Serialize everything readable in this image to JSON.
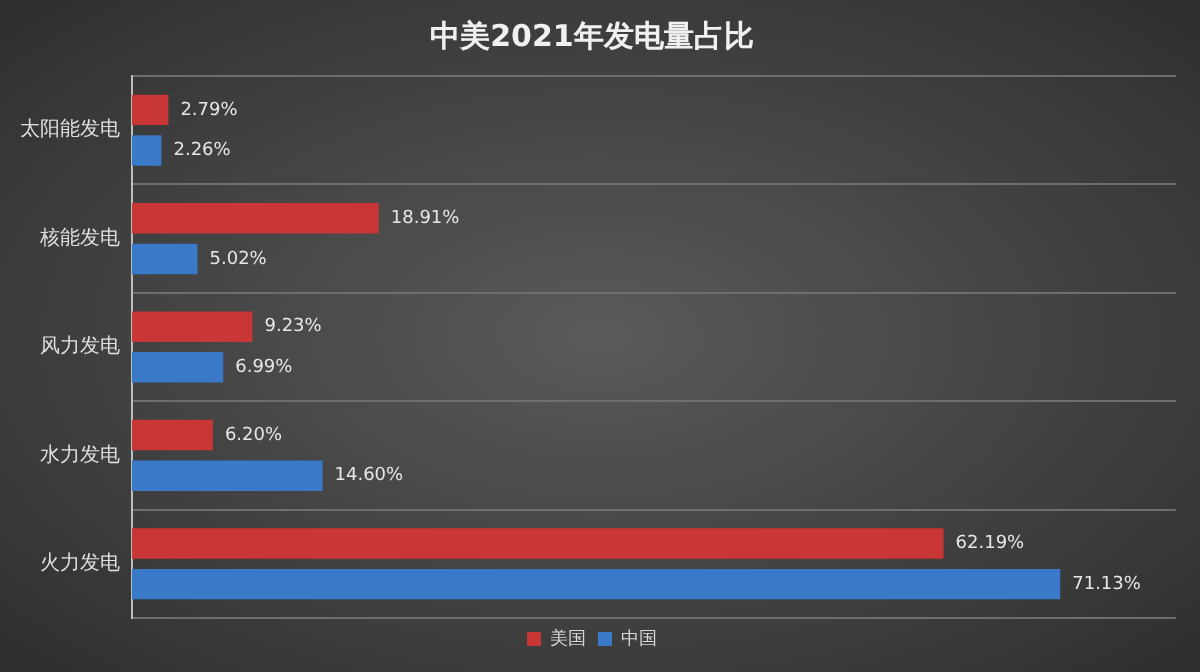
{
  "chart_data": {
    "type": "bar",
    "orientation": "horizontal",
    "title": "中美2021年发电量占比",
    "categories": [
      "太阳能发电",
      "核能发电",
      "风力发电",
      "水力发电",
      "火力发电"
    ],
    "series": [
      {
        "name": "美国",
        "color": "#c93636",
        "values": [
          2.79,
          18.91,
          9.23,
          6.2,
          62.19
        ],
        "value_labels": [
          "2.79%",
          "18.91%",
          "9.23%",
          "6.20%",
          "62.19%"
        ]
      },
      {
        "name": "中国",
        "color": "#3a78c8",
        "values": [
          2.26,
          5.02,
          6.99,
          14.6,
          71.13
        ],
        "value_labels": [
          "2.26%",
          "5.02%",
          "6.99%",
          "14.60%",
          "71.13%"
        ]
      }
    ],
    "grid": "y",
    "legend": "bottom"
  }
}
